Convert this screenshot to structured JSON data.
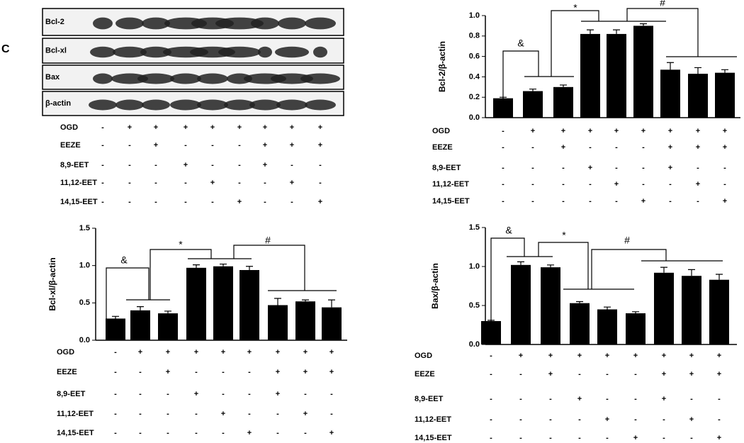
{
  "panel_label": "C",
  "blot": {
    "bands": [
      "Bcl-2",
      "Bcl-xl",
      "Bax",
      "β-actin"
    ]
  },
  "treatments": [
    {
      "name": "OGD",
      "signs": [
        "-",
        "+",
        "+",
        "+",
        "+",
        "+",
        "+",
        "+",
        "+"
      ]
    },
    {
      "name": "EEZE",
      "signs": [
        "-",
        "-",
        "+",
        "-",
        "-",
        "-",
        "+",
        "+",
        "+"
      ]
    },
    {
      "name": "8,9-EET",
      "signs": [
        "-",
        "-",
        "-",
        "+",
        "-",
        "-",
        "+",
        "-",
        "-"
      ]
    },
    {
      "name": "11,12-EET",
      "signs": [
        "-",
        "-",
        "-",
        "-",
        "+",
        "-",
        "-",
        "+",
        "-"
      ]
    },
    {
      "name": "14,15-EET",
      "signs": [
        "-",
        "-",
        "-",
        "-",
        "-",
        "+",
        "-",
        "-",
        "+"
      ]
    }
  ],
  "chart_data": [
    {
      "type": "bar",
      "ylabel": "Bcl-2/β-actin",
      "color": "#000000",
      "values": [
        0.19,
        0.26,
        0.3,
        0.82,
        0.82,
        0.9,
        0.47,
        0.43,
        0.44
      ],
      "errors": [
        0.01,
        0.02,
        0.02,
        0.04,
        0.04,
        0.02,
        0.07,
        0.06,
        0.03
      ],
      "ylim": [
        0,
        1.0
      ],
      "yticks": [
        {
          "value": 0,
          "label": "0.0"
        },
        0.2,
        0.4,
        0.6,
        0.8,
        {
          "value": 1.0,
          "label": "1.0"
        }
      ],
      "annotations": [
        "&",
        "*",
        "#"
      ]
    },
    {
      "type": "bar",
      "ylabel": "Bcl-xl/β-actin",
      "color": "#000000",
      "values": [
        0.29,
        0.4,
        0.36,
        0.97,
        0.99,
        0.94,
        0.47,
        0.52,
        0.44
      ],
      "errors": [
        0.03,
        0.05,
        0.03,
        0.04,
        0.03,
        0.05,
        0.09,
        0.02,
        0.1
      ],
      "ylim": [
        0,
        1.5
      ],
      "yticks": [
        {
          "value": 0,
          "label": "0.0"
        },
        0.5,
        {
          "value": 1.0,
          "label": "1.0"
        },
        1.5
      ],
      "annotations": [
        "&",
        "*",
        "#"
      ]
    },
    {
      "type": "bar",
      "ylabel": "Bax/β-actin",
      "color": "#000000",
      "values": [
        0.3,
        1.02,
        0.99,
        0.53,
        0.45,
        0.4,
        0.92,
        0.88,
        0.83
      ],
      "errors": [
        0.01,
        0.04,
        0.03,
        0.02,
        0.03,
        0.02,
        0.07,
        0.08,
        0.07
      ],
      "ylim": [
        0,
        1.5
      ],
      "yticks": [
        {
          "value": 0,
          "label": "0.0"
        },
        0.5,
        {
          "value": 1.0,
          "label": "1.0"
        },
        1.5
      ],
      "annotations": [
        "&",
        "*",
        "#"
      ]
    }
  ]
}
